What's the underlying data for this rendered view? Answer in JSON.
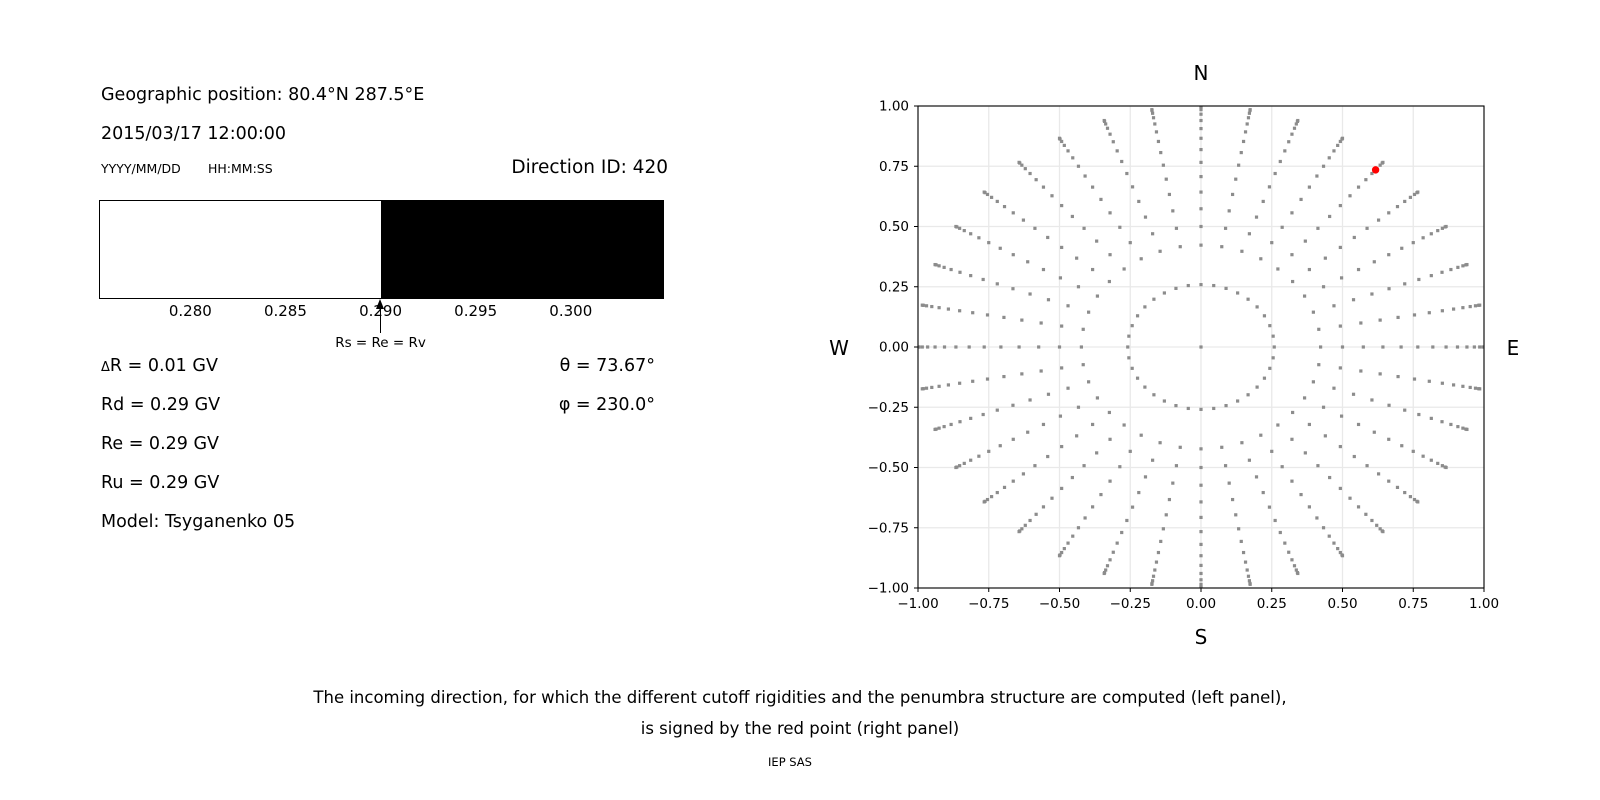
{
  "figure": {
    "background": "#ffffff"
  },
  "info_panel": {
    "geo_position": "Geographic position: 80.4°N 287.5°E",
    "datetime": "2015/03/17 12:00:00",
    "date_format_label": "YYYY/MM/DD",
    "time_format_label": "HH:MM:SS",
    "direction_id_label": "Direction ID: 420",
    "value_rows": [
      "ΔR = 0.01 GV",
      "Rd = 0.29 GV",
      "Re = 0.29 GV",
      "Ru = 0.29 GV",
      "Model: Tsyganenko 05"
    ],
    "theta_label": "θ = 73.67°",
    "phi_label": "φ = 230.0°"
  },
  "caption": {
    "line1": "The incoming direction, for which the different cutoff rigidities and the penumbra structure are computed (left panel),",
    "line2": "is signed by the red point (right panel)",
    "credit": "IEP SAS"
  },
  "chart_data": [
    {
      "type": "bar",
      "name": "penumbra-structure",
      "xlim": [
        0.2752,
        0.3049
      ],
      "xticks": [
        0.28,
        0.285,
        0.29,
        0.295,
        0.3
      ],
      "tick_decimals": 3,
      "segments": [
        {
          "from": 0.2752,
          "to": 0.29,
          "color": "#ffffff"
        },
        {
          "from": 0.29,
          "to": 0.3049,
          "color": "#000000"
        }
      ],
      "marker": {
        "x": 0.29,
        "label": "Rs = Re = Rv"
      }
    },
    {
      "type": "scatter",
      "name": "incoming-directions",
      "xlim": [
        -1.0,
        1.0
      ],
      "ylim": [
        -1.0,
        1.0
      ],
      "xticks": [
        -1.0,
        -0.75,
        -0.5,
        -0.25,
        0.0,
        0.25,
        0.5,
        0.75,
        1.0
      ],
      "yticks": [
        -1.0,
        -0.75,
        -0.5,
        -0.25,
        0.0,
        0.25,
        0.5,
        0.75,
        1.0
      ],
      "tick_decimals": 2,
      "grid": true,
      "grid_color": "#e9e9e9",
      "compass": {
        "top": "N",
        "bottom": "S",
        "left": "W",
        "right": "E"
      },
      "direction_grid": {
        "azimuth_step_deg": 10,
        "zenith_angles_deg": [
          15,
          25,
          30,
          35,
          40,
          45,
          50,
          55,
          60,
          65,
          70,
          75,
          80,
          85,
          90
        ],
        "radius_rule": "sin(zenith)",
        "center_dot": true,
        "dot_color": "#8c8c8c",
        "dot_size_px": 3.2
      },
      "selected_direction": {
        "x": 0.617,
        "y": 0.735,
        "color": "#ff0000",
        "radius_px": 3.7
      }
    }
  ]
}
